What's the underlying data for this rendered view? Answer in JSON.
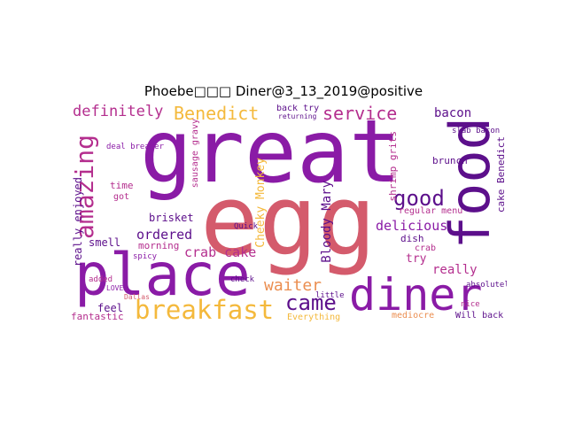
{
  "title": "Phoebe□□□ Diner@3_13_2019@positive",
  "palette": {
    "purple_dark": "#5c0f8b",
    "purple": "#8a1ba6",
    "magenta": "#b42e8e",
    "rose": "#d45b6c",
    "orange": "#eb8e50",
    "gold": "#f4b93c",
    "yellow": "#f0e13a"
  },
  "words": [
    {
      "text": "great"
    },
    {
      "text": "egg"
    },
    {
      "text": "place"
    },
    {
      "text": "food"
    },
    {
      "text": "diner"
    },
    {
      "text": "breakfast"
    },
    {
      "text": "amazing"
    },
    {
      "text": "service"
    },
    {
      "text": "Benedict"
    },
    {
      "text": "definitely"
    },
    {
      "text": "good"
    },
    {
      "text": "came"
    },
    {
      "text": "waiter"
    },
    {
      "text": "bacon"
    },
    {
      "text": "delicious"
    },
    {
      "text": "crab cake"
    },
    {
      "text": "ordered"
    },
    {
      "text": "Bloody Mary"
    },
    {
      "text": "Cheeky Monkey"
    },
    {
      "text": "really enjoyed"
    },
    {
      "text": "really"
    },
    {
      "text": "try"
    },
    {
      "text": "brisket"
    },
    {
      "text": "time"
    },
    {
      "text": "smell"
    },
    {
      "text": "morning"
    },
    {
      "text": "shrimp grits"
    },
    {
      "text": "cake Benedict"
    },
    {
      "text": "brunch"
    },
    {
      "text": "regular menu"
    },
    {
      "text": "back try"
    },
    {
      "text": "dish"
    },
    {
      "text": "crab"
    },
    {
      "text": "feel"
    },
    {
      "text": "fantastic"
    },
    {
      "text": "mediocre"
    },
    {
      "text": "Will back"
    },
    {
      "text": "Everything"
    },
    {
      "text": "deal breaker"
    },
    {
      "text": "sausage gravy"
    },
    {
      "text": "slab bacon"
    },
    {
      "text": "got"
    },
    {
      "text": "Quick"
    },
    {
      "text": "little"
    },
    {
      "text": "absolutely"
    },
    {
      "text": "spicy"
    },
    {
      "text": "added"
    },
    {
      "text": "LOVED"
    },
    {
      "text": "Dallas"
    },
    {
      "text": "check"
    },
    {
      "text": "nice"
    },
    {
      "text": "returning"
    }
  ]
}
